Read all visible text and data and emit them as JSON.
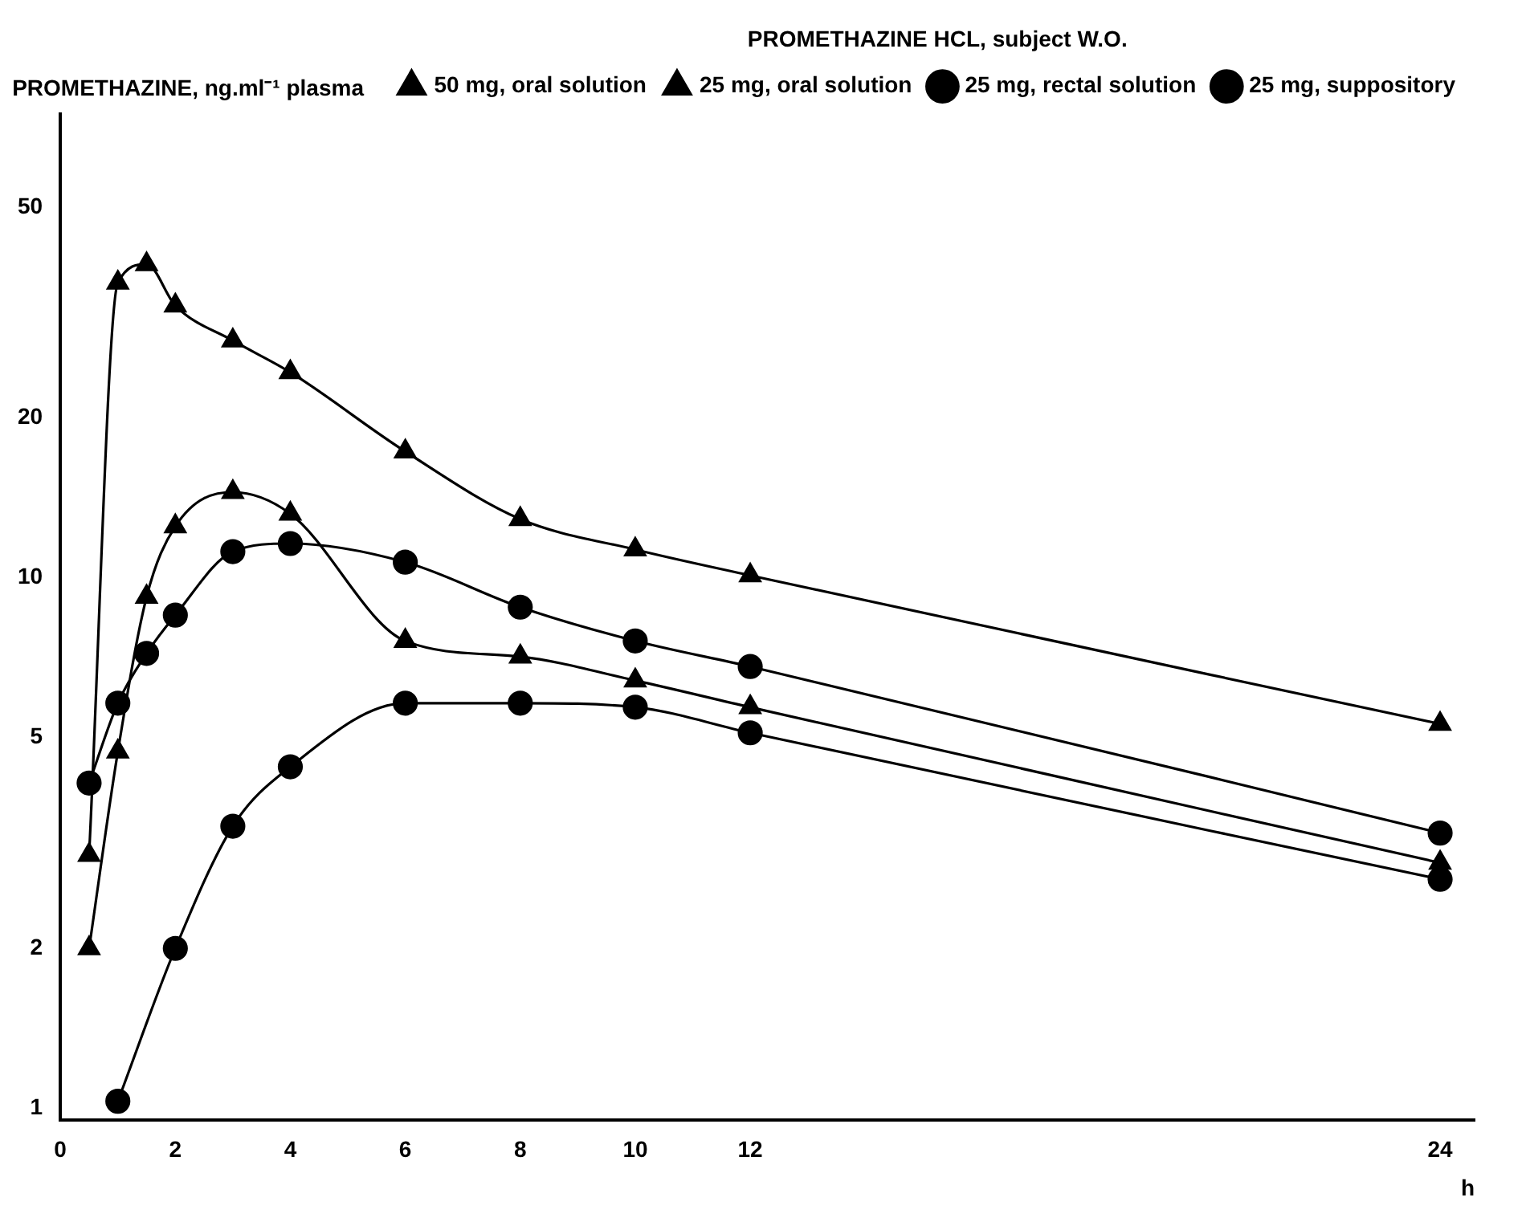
{
  "chart_data": {
    "type": "line",
    "ylabel": "PROMETHAZINE, ng.ml⁻¹ plasma",
    "xlabel": "h",
    "legend_title": "PROMETHAZINE HCL, subject W.O.",
    "legend": "top right",
    "log": "y",
    "grid": false,
    "line_style": "solid",
    "xlim": [
      0,
      24.6
    ],
    "xticks": [
      0,
      2,
      4,
      6,
      8,
      10,
      12,
      24
    ],
    "ylim": [
      0.95,
      75
    ],
    "yticks": [
      1,
      2,
      5,
      10,
      20,
      50
    ],
    "series": [
      {
        "name": "50 mg, oral solution",
        "color": "#000000",
        "marker": "triangle",
        "x": [
          0.5,
          1,
          1.5,
          2,
          3,
          4,
          6,
          8,
          10,
          12,
          24
        ],
        "values": [
          3.0,
          36,
          39,
          32.6,
          28,
          24.4,
          17.3,
          12.9,
          11.3,
          10.1,
          5.3
        ]
      },
      {
        "name": "25 mg, oral solution",
        "color": "#000000",
        "marker": "triangle",
        "x": [
          0.5,
          1,
          1.5,
          2,
          3,
          4,
          6,
          8,
          10,
          12,
          24
        ],
        "values": [
          2.0,
          4.7,
          9.2,
          12.5,
          14.5,
          13.2,
          7.6,
          7.1,
          6.4,
          5.7,
          2.9
        ]
      },
      {
        "name": "25 mg, rectal solution",
        "color": "#000000",
        "marker": "circle",
        "x": [
          0.5,
          1,
          1.5,
          2,
          3,
          4,
          6,
          8,
          10,
          12,
          24
        ],
        "values": [
          4.1,
          5.8,
          7.2,
          8.5,
          11.2,
          11.6,
          10.7,
          8.8,
          7.6,
          6.8,
          3.3
        ]
      },
      {
        "name": "25 mg, suppository",
        "color": "#000000",
        "marker": "circle",
        "x": [
          1,
          2,
          3,
          4,
          6,
          8,
          10,
          12,
          24
        ],
        "values": [
          1.03,
          2.0,
          3.4,
          4.4,
          5.8,
          5.8,
          5.7,
          5.1,
          2.7
        ]
      }
    ]
  }
}
